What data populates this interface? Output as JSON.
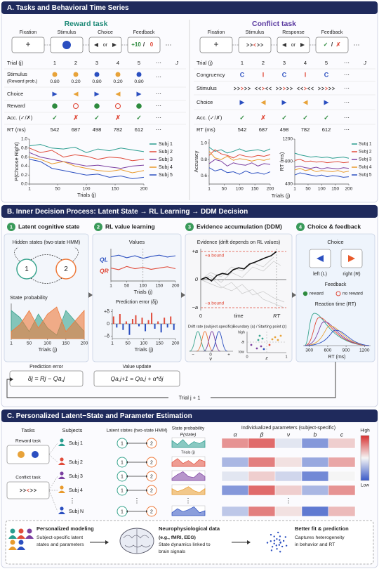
{
  "panel_a": {
    "title": "A.  Tasks and Behavioral Time Series",
    "ellipsis": "⋯",
    "reward_task": {
      "title": "Reward task",
      "stages": [
        "Fixation",
        "Stimulus",
        "Choice",
        "Feedback"
      ],
      "fixation": "+",
      "choice_text": "or",
      "feedback": [
        "+10",
        "/",
        "0"
      ],
      "table": {
        "trial_label": "Trial (j)",
        "trials": [
          "1",
          "2",
          "3",
          "4",
          "5",
          "J"
        ],
        "stimulus_label": "Stimulus",
        "stimulus_sub": "(Reward prob.)",
        "reward_prob": [
          "0.80",
          "0.20",
          "0.80",
          "0.20",
          "0.80"
        ],
        "choice_label": "Choice",
        "reward_label": "Reward",
        "acc_label": "Acc. (✓/✗)",
        "acc": [
          "✓",
          "✗",
          "✓",
          "✗",
          "✓"
        ],
        "rt_label": "RT (ms)",
        "rt": [
          "542",
          "687",
          "498",
          "782",
          "612"
        ]
      },
      "chart": {
        "type": "line",
        "ylabel": "P(Choose Right)",
        "xlabel": "Trials (j)",
        "x": [
          1,
          20,
          40,
          60,
          80,
          100,
          120,
          140,
          160,
          180,
          200
        ],
        "xlim": [
          1,
          200
        ],
        "ylim": [
          0,
          1
        ],
        "xticks": [
          1,
          50,
          100,
          150,
          200
        ],
        "yticks": [
          {
            "value": 0,
            "label": "0.0"
          },
          0.2,
          0.4,
          0.6,
          0.8,
          {
            "value": 1,
            "label": "1.0"
          }
        ],
        "series": [
          {
            "name": "Subj 1",
            "color": "#2a9d8f",
            "values": [
              0.85,
              0.88,
              0.8,
              0.78,
              0.82,
              0.7,
              0.78,
              0.74,
              0.8,
              0.76,
              0.72
            ]
          },
          {
            "name": "Subj 2",
            "color": "#e04b3a",
            "values": [
              0.8,
              0.7,
              0.75,
              0.6,
              0.65,
              0.62,
              0.55,
              0.6,
              0.58,
              0.52,
              0.55
            ]
          },
          {
            "name": "Subj 3",
            "color": "#7b3fa0",
            "values": [
              0.7,
              0.6,
              0.55,
              0.5,
              0.45,
              0.4,
              0.42,
              0.38,
              0.35,
              0.4,
              0.42
            ]
          },
          {
            "name": "Subj 4",
            "color": "#e89a2c",
            "values": [
              0.6,
              0.55,
              0.45,
              0.5,
              0.4,
              0.35,
              0.3,
              0.28,
              0.32,
              0.25,
              0.3
            ]
          },
          {
            "name": "Subj 5",
            "color": "#2b4fc0",
            "values": [
              0.55,
              0.5,
              0.35,
              0.3,
              0.25,
              0.2,
              0.22,
              0.15,
              0.18,
              0.12,
              0.15
            ]
          }
        ]
      }
    },
    "conflict_task": {
      "title": "Conflict task",
      "stages": [
        "Fixation",
        "Stimulus",
        "Response",
        "Feedback"
      ],
      "fixation": "+",
      "choice_text": "or",
      "feedback": [
        "✓",
        "/",
        "✗"
      ],
      "table": {
        "trial_label": "Trial (j)",
        "trials": [
          "1",
          "2",
          "3",
          "4",
          "5",
          "J"
        ],
        "congruency_label": "Congruency",
        "congruency": [
          "C",
          "I",
          "C",
          "I",
          "C"
        ],
        "stimulus_label": "Stimulus",
        "choice_label": "Choice",
        "acc_label": "Acc. (✓/✗)",
        "acc": [
          "✓",
          "✗",
          "✓",
          "✓",
          "✓"
        ],
        "rt_label": "RT (ms)",
        "rt": [
          "542",
          "687",
          "498",
          "782",
          "612"
        ]
      },
      "accuracy_chart": {
        "type": "line",
        "ylabel": "Accuracy",
        "x": [
          1,
          20,
          40,
          60,
          80,
          100,
          120,
          140,
          160,
          180,
          200
        ],
        "xlim": [
          1,
          200
        ],
        "ylim": [
          0.5,
          1.05
        ],
        "xticks": [
          1,
          50,
          100,
          150,
          200
        ],
        "yticks": [
          0.6,
          0.8,
          {
            "value": 1,
            "label": "1.0"
          }
        ],
        "series": [
          {
            "color": "#2a9d8f",
            "values": [
              0.95,
              0.9,
              0.92,
              0.88,
              0.9,
              0.93,
              0.9,
              0.91,
              0.92,
              0.9,
              0.93
            ]
          },
          {
            "color": "#e04b3a",
            "values": [
              0.85,
              0.92,
              0.87,
              0.85,
              0.82,
              0.86,
              0.84,
              0.83,
              0.85,
              0.84,
              0.86
            ]
          },
          {
            "color": "#7b3fa0",
            "values": [
              0.75,
              0.8,
              0.78,
              0.72,
              0.76,
              0.74,
              0.73,
              0.76,
              0.72,
              0.75,
              0.74
            ]
          },
          {
            "color": "#e89a2c",
            "values": [
              0.9,
              0.82,
              0.8,
              0.84,
              0.79,
              0.81,
              0.8,
              0.78,
              0.8,
              0.79,
              0.81
            ]
          },
          {
            "color": "#2b4fc0",
            "values": [
              0.7,
              0.66,
              0.68,
              0.64,
              0.65,
              0.62,
              0.66,
              0.63,
              0.64,
              0.62,
              0.65
            ]
          }
        ]
      },
      "rt_chart": {
        "type": "line",
        "ylabel": "RT (ms)",
        "xlabel": "Trials (j)",
        "x": [
          1,
          20,
          40,
          60,
          80,
          100,
          120,
          140,
          160,
          180,
          200
        ],
        "xlim": [
          1,
          200
        ],
        "ylim": [
          400,
          1200
        ],
        "xticks": [
          1,
          50,
          100,
          150,
          200
        ],
        "yticks": [
          400,
          800,
          1200
        ],
        "series": [
          {
            "name": "Subj 1",
            "color": "#2a9d8f",
            "values": [
              950,
              920,
              900,
              880,
              890,
              870,
              880,
              860,
              870,
              880,
              860
            ]
          },
          {
            "name": "Subj 2",
            "color": "#e04b3a",
            "values": [
              820,
              840,
              800,
              810,
              790,
              800,
              780,
              790,
              800,
              780,
              790
            ]
          },
          {
            "name": "Subj 3",
            "color": "#7b3fa0",
            "values": [
              700,
              720,
              690,
              680,
              700,
              670,
              690,
              680,
              670,
              690,
              680
            ]
          },
          {
            "name": "Subj 4",
            "color": "#e89a2c",
            "values": [
              650,
              680,
              640,
              660,
              620,
              640,
              630,
              620,
              640,
              610,
              630
            ]
          },
          {
            "name": "Subj 5",
            "color": "#2b4fc0",
            "values": [
              560,
              600,
              580,
              560,
              540,
              560,
              530,
              550,
              540,
              520,
              530
            ]
          }
        ]
      }
    }
  },
  "panel_b": {
    "title": "B.  Inner Decision Process:   Latent State  →  RL Learning  →  DDM Decision",
    "steps": [
      {
        "number": "1",
        "label": "Latent cognitive state"
      },
      {
        "number": "2",
        "label": "RL value learning"
      },
      {
        "number": "3",
        "label": "Evidence accumulation (DDM)"
      },
      {
        "number": "4",
        "label": "Choice & feedback"
      }
    ],
    "latent": {
      "title": "Hidden states (two-state HMM)",
      "states": [
        "1",
        "2"
      ],
      "prob_title": "State probability",
      "chart": {
        "type": "area",
        "xlabel": "Trials (j)",
        "x": [
          1,
          25,
          50,
          75,
          100,
          125,
          150,
          175,
          200
        ],
        "xlim": [
          1,
          200
        ],
        "ylim": [
          0,
          1
        ],
        "xticks": [
          1,
          50,
          100,
          150,
          200
        ],
        "series": [
          {
            "color": "#3aa58f",
            "values": [
              0.8,
              0.6,
              0.2,
              0.7,
              0.3,
              0.1,
              0.8,
              0.5,
              0.2
            ]
          },
          {
            "color": "#ee7a3b",
            "values": [
              0.2,
              0.4,
              0.8,
              0.3,
              0.7,
              0.9,
              0.2,
              0.5,
              0.8
            ]
          }
        ]
      }
    },
    "values": {
      "title": "Values",
      "chart": {
        "type": "line",
        "xlabel": "Trials (j)",
        "x": [
          1,
          25,
          50,
          75,
          100,
          125,
          150,
          175,
          200
        ],
        "xlim": [
          1,
          200
        ],
        "ylim": [
          0,
          1
        ],
        "xticks": [
          1,
          50,
          100,
          150,
          200
        ],
        "series": [
          {
            "name": "QL",
            "color": "#2b4fc0",
            "values": [
              0.75,
              0.8,
              0.72,
              0.78,
              0.7,
              0.76,
              0.8,
              0.74,
              0.78
            ]
          },
          {
            "name": "QR",
            "color": "#e04b3a",
            "values": [
              0.4,
              0.35,
              0.45,
              0.38,
              0.42,
              0.36,
              0.4,
              0.44,
              0.38
            ]
          }
        ]
      },
      "pe_title": "Prediction error (δj)",
      "pe_chart": {
        "type": "bar",
        "xlabel": "Trials (j)",
        "x": [
          5,
          15,
          25,
          35,
          45,
          55,
          65,
          75,
          85,
          95,
          105,
          115,
          125,
          135,
          145,
          155,
          165,
          175,
          185,
          195
        ],
        "xlim": [
          1,
          200
        ],
        "ylim": [
          -1.2,
          1.2
        ],
        "xticks": [
          1,
          50,
          100,
          150,
          200
        ],
        "yticks": [
          {
            "value": 1,
            "label": "+δ"
          },
          0,
          {
            "value": -1,
            "label": "−δ"
          }
        ],
        "pos_color": "#e04b3a",
        "neg_color": "#2b4fc0",
        "values": [
          0.6,
          -0.3,
          0.8,
          -0.5,
          0.2,
          -0.9,
          0.4,
          0.7,
          -0.2,
          0.5,
          -0.6,
          0.3,
          0.9,
          -0.4,
          0.2,
          -0.7,
          0.5,
          -0.3,
          0.6,
          -0.5
        ]
      }
    },
    "evidence": {
      "title": "Evidence (drift depends on RL values)",
      "ylim": [
        -1.1,
        1.1
      ],
      "yticks": [
        {
          "value": 1,
          "label": "+a"
        },
        0,
        {
          "value": -1,
          "label": "−a"
        }
      ],
      "bounds": [
        "+a bound",
        "−a bound"
      ],
      "x_labels": [
        "0",
        "time",
        "RT"
      ],
      "path": [
        0,
        0.08,
        -0.05,
        0.15,
        0.22,
        0.18,
        0.35,
        0.42,
        0.38,
        0.55,
        0.62,
        0.7,
        0.78,
        0.85,
        1
      ],
      "drift_title": "Drift rate (subject-specific)",
      "drift_ticks": [
        "−",
        "0",
        "+"
      ],
      "drift_symbol": "ν",
      "boundary_title": "Boundary (a) / Starting point (z)",
      "boundary_labels": [
        "high",
        "low",
        "a",
        "z",
        "0",
        "1"
      ]
    },
    "choice": {
      "title": "Choice",
      "options": [
        "left (L)",
        "right (R)"
      ],
      "feedback_title": "Feedback",
      "feedback": [
        "reward",
        "no reward"
      ],
      "rt_title": "Reaction time (RT)",
      "rt_xlabel": "RT (ms)",
      "rt_xlim": [
        200,
        1300
      ],
      "rt_xticks": [
        300,
        600,
        900,
        1200
      ]
    },
    "formulas": {
      "pe_label": "Prediction error",
      "pe": "δj = Rj − Qa,j",
      "update_label": "Value update",
      "update": "Qa,j+1 = Qa,j + α*δj",
      "loop": "Trial j + 1"
    }
  },
  "panel_c": {
    "title": "C.  Personalized Latent−State and Parameter Estimation",
    "tasks_title": "Tasks",
    "tasks": [
      "Reward task",
      "Conflict task"
    ],
    "subjects_title": "Subjects",
    "subjects": [
      "Subj 1",
      "Subj 2",
      "Subj 3",
      "Subj 4",
      "Subj N"
    ],
    "subject_colors": [
      "#2a9d8f",
      "#e04b3a",
      "#7b3fa0",
      "#e89a2c",
      "#2b4fc0"
    ],
    "vdots": "⋮",
    "latent_title": "Latent states (two-state HMM)",
    "states": [
      "1",
      "2"
    ],
    "prob_title": "State probability",
    "prob_sub": "P(state)",
    "prob_xlabel": "Trials (j)",
    "prob_ylim": [
      0,
      1
    ],
    "prob_series": [
      [
        0.7,
        0.3,
        0.8,
        0.2,
        0.6,
        0.4,
        0.7
      ],
      [
        0.4,
        0.8,
        0.3,
        0.6,
        0.2,
        0.7,
        0.5
      ],
      [
        0.2,
        0.6,
        0.9,
        0.4,
        0.3,
        0.8,
        0.4
      ],
      [
        0.6,
        0.3,
        0.5,
        0.8,
        0.4,
        0.2,
        0.6
      ],
      [
        0.3,
        0.7,
        0.4,
        0.6,
        0.9,
        0.3,
        0.5
      ]
    ],
    "params_title": "Individualized parameters (subject-specific)",
    "params": [
      "α",
      "β",
      "ν",
      "b",
      "c"
    ],
    "vlim": [
      0,
      1
    ],
    "heatmap": [
      [
        0.75,
        0.85,
        0.45,
        0.2,
        0.6
      ],
      [
        0.3,
        0.8,
        0.55,
        0.25,
        0.7
      ],
      [
        0.45,
        0.6,
        0.4,
        0.15,
        0.5
      ],
      [
        0.2,
        0.85,
        0.6,
        0.3,
        0.75
      ],
      [
        0.35,
        0.8,
        0.55,
        0.1,
        0.65
      ]
    ],
    "colorbar": [
      "High",
      "Low"
    ],
    "summary": [
      {
        "title": "Personalized modeling",
        "lines": [
          "Subject-specific latent",
          "states and parameters"
        ]
      },
      {
        "title": "Neurophysiological data",
        "lines": [
          "(e.g., fMRI, EEG)",
          "State dynamics linked to",
          "brain signals"
        ]
      },
      {
        "title": "Better fit & prediction",
        "lines": [
          "Captures heterogeneity",
          "in behavior and RT"
        ]
      }
    ]
  }
}
